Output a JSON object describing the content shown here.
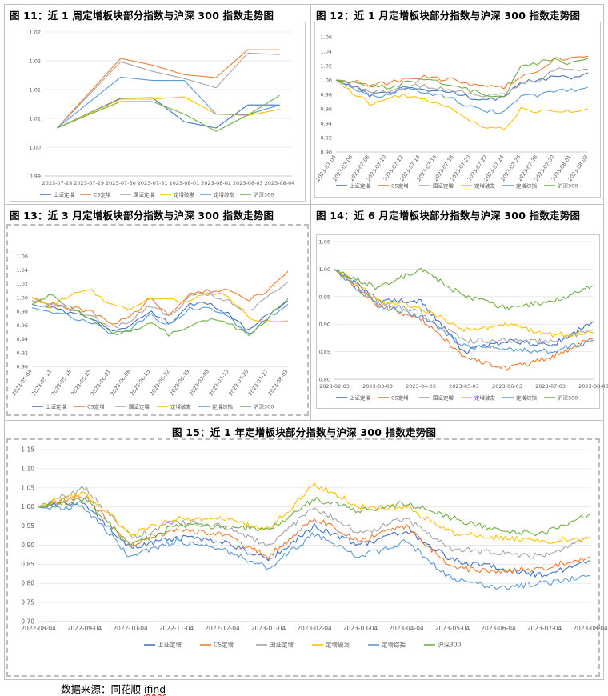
{
  "figures": {
    "f11": {
      "title": "图 11：近 1 周定增板块部分指数与沪深 300 指数走势图"
    },
    "f12": {
      "title": "图 12：近 1 月定增板块部分指数与沪深 300 指数走势图"
    },
    "f13": {
      "title": "图 13：近 3 月定增板块部分指数与沪深 300 指数走势图"
    },
    "f14": {
      "title": "图 14：近 6 月定增板块部分指数与沪深 300 指数走势图"
    },
    "f15": {
      "title": "图 15：近 1 年定增板块部分指数与沪深 300 指数走势图"
    }
  },
  "source": {
    "label": "数据来源：",
    "text": "同花顺 ",
    "underlined": "ifind"
  },
  "series_colors": {
    "上证定增": "#4472c4",
    "CS定增": "#ed7d31",
    "国证定增": "#a5a5a5",
    "定增破发": "#ffc000",
    "定增综指": "#5b9bd5",
    "沪深300": "#70ad47"
  },
  "chart_data": [
    {
      "id": "f11",
      "type": "line",
      "x": [
        "2023-07-28",
        "2023-07-29",
        "2023-07-30",
        "2023-07-31",
        "2023-08-01",
        "2023-08-02",
        "2023-08-03",
        "2023-08-04"
      ],
      "ylim": [
        0.99,
        1.02
      ],
      "yticks": [
        "0.99",
        "1.00",
        "1.01",
        "1.01",
        "1.02",
        "1.02"
      ],
      "series": [
        {
          "name": "上证定增",
          "values": [
            1.0,
            1.0031,
            1.0062,
            1.0063,
            1.0013,
            1.0,
            1.0048,
            1.0048
          ]
        },
        {
          "name": "CS定增",
          "values": [
            1.0,
            1.0073,
            1.0145,
            1.0131,
            1.0111,
            1.0105,
            1.0163,
            1.0163
          ]
        },
        {
          "name": "国证定增",
          "values": [
            1.0,
            1.0069,
            1.0138,
            1.0118,
            1.0103,
            1.0084,
            1.0156,
            1.0153
          ]
        },
        {
          "name": "定增破发",
          "values": [
            1.0,
            1.003,
            1.006,
            1.006,
            1.0065,
            1.0029,
            1.0026,
            1.0039
          ]
        },
        {
          "name": "定增综指",
          "values": [
            1.0,
            1.0053,
            1.0106,
            1.0099,
            1.0099,
            1.0029,
            1.0028,
            1.0048
          ]
        },
        {
          "name": "沪深300",
          "values": [
            1.0,
            1.0028,
            1.0055,
            1.0055,
            1.0029,
            0.9993,
            1.0027,
            1.0068
          ]
        }
      ]
    },
    {
      "id": "f12",
      "type": "line",
      "x": [
        "2023-07-04",
        "2023-07-06",
        "2023-07-08",
        "2023-07-10",
        "2023-07-12",
        "2023-07-14",
        "2023-07-16",
        "2023-07-18",
        "2023-07-20",
        "2023-07-22",
        "2023-07-24",
        "2023-07-26",
        "2023-07-28",
        "2023-07-30",
        "2023-08-01",
        "2023-08-03"
      ],
      "ylim": [
        0.9,
        1.06
      ],
      "yticks": [
        "0.90",
        "0.92",
        "0.94",
        "0.96",
        "0.98",
        "1.00",
        "1.02",
        "1.04",
        "1.06"
      ],
      "series": [
        {
          "name": "上证定增",
          "values": [
            1.0,
            0.991,
            0.978,
            0.981,
            0.987,
            0.988,
            0.985,
            0.983,
            0.975,
            0.973,
            0.974,
            0.998,
            0.998,
            1.004,
            1.002,
            1.01
          ]
        },
        {
          "name": "CS定增",
          "values": [
            1.0,
            0.998,
            0.992,
            0.996,
            1.0,
            1.005,
            1.002,
            1.0,
            0.995,
            0.992,
            0.99,
            1.005,
            1.01,
            1.028,
            1.03,
            1.033
          ]
        },
        {
          "name": "国证定增",
          "values": [
            1.0,
            0.993,
            0.982,
            0.985,
            0.99,
            0.992,
            0.988,
            0.986,
            0.979,
            0.977,
            0.978,
            0.997,
            1.0,
            1.015,
            1.012,
            1.015
          ]
        },
        {
          "name": "定增破发",
          "values": [
            1.0,
            0.982,
            0.967,
            0.972,
            0.98,
            0.975,
            0.97,
            0.96,
            0.94,
            0.935,
            0.933,
            0.96,
            0.955,
            0.958,
            0.955,
            0.96
          ]
        },
        {
          "name": "定增综指",
          "values": [
            1.0,
            0.99,
            0.978,
            0.98,
            0.988,
            0.985,
            0.98,
            0.973,
            0.962,
            0.958,
            0.956,
            0.977,
            0.978,
            0.985,
            0.985,
            0.99
          ]
        },
        {
          "name": "沪深300",
          "values": [
            1.0,
            0.997,
            0.994,
            0.99,
            0.995,
            1.0,
            0.997,
            0.992,
            0.985,
            0.98,
            0.976,
            1.018,
            1.023,
            1.03,
            1.022,
            1.03
          ]
        }
      ]
    },
    {
      "id": "f13",
      "type": "line",
      "x": [
        "2023-05-04",
        "2023-05-11",
        "2023-05-18",
        "2023-05-25",
        "2023-06-01",
        "2023-06-08",
        "2023-06-15",
        "2023-06-22",
        "2023-06-29",
        "2023-07-06",
        "2023-07-13",
        "2023-07-20",
        "2023-07-27",
        "2023-08-03"
      ],
      "ylim": [
        0.9,
        1.06
      ],
      "yticks": [
        "0.90",
        "0.92",
        "0.94",
        "0.96",
        "0.98",
        "1.00",
        "1.02",
        "1.04",
        "1.06"
      ],
      "series": [
        {
          "name": "上证定增",
          "values": [
            0.99,
            0.985,
            0.975,
            0.97,
            0.95,
            0.96,
            0.98,
            0.962,
            0.99,
            0.99,
            0.975,
            0.95,
            0.975,
            0.995
          ]
        },
        {
          "name": "CS定增",
          "values": [
            1.0,
            0.99,
            0.985,
            0.98,
            0.962,
            0.972,
            0.998,
            0.975,
            1.005,
            1.01,
            1.01,
            0.995,
            1.01,
            1.038
          ]
        },
        {
          "name": "国证定增",
          "values": [
            0.995,
            0.99,
            0.98,
            0.975,
            0.955,
            0.965,
            0.99,
            0.97,
            1.0,
            1.005,
            0.995,
            0.98,
            1.0,
            1.022
          ]
        },
        {
          "name": "定增破发",
          "values": [
            1.0,
            0.985,
            1.005,
            1.01,
            0.99,
            0.985,
            1.0,
            0.995,
            0.995,
            1.01,
            1.0,
            0.97,
            0.965,
            0.966
          ]
        },
        {
          "name": "定增综指",
          "values": [
            0.985,
            0.98,
            0.972,
            0.965,
            0.945,
            0.955,
            0.975,
            0.958,
            0.985,
            0.985,
            0.97,
            0.945,
            0.97,
            0.99
          ]
        },
        {
          "name": "沪深300",
          "values": [
            0.99,
            1.005,
            0.985,
            0.97,
            0.95,
            0.948,
            0.965,
            0.945,
            0.96,
            0.968,
            0.962,
            0.945,
            0.97,
            0.998
          ]
        }
      ]
    },
    {
      "id": "f14",
      "type": "line",
      "x": [
        "2023-02-03",
        "2023-03-03",
        "2023-04-03",
        "2023-05-03",
        "2023-06-03",
        "2023-07-03",
        "2023-08-03"
      ],
      "ylim": [
        0.8,
        1.05
      ],
      "yticks": [
        "0.80",
        "0.85",
        "0.90",
        "0.95",
        "1.00",
        "1.05"
      ],
      "series": [
        {
          "name": "上证定增",
          "values": [
            1.0,
            0.945,
            0.94,
            0.85,
            0.87,
            0.86,
            0.905
          ]
        },
        {
          "name": "CS定增",
          "values": [
            1.0,
            0.935,
            0.91,
            0.84,
            0.82,
            0.84,
            0.875
          ]
        },
        {
          "name": "国证定增",
          "values": [
            1.0,
            0.94,
            0.92,
            0.87,
            0.87,
            0.87,
            0.89
          ]
        },
        {
          "name": "定增破发",
          "values": [
            1.0,
            0.945,
            0.93,
            0.89,
            0.9,
            0.88,
            0.885
          ]
        },
        {
          "name": "定增综指",
          "values": [
            1.0,
            0.935,
            0.915,
            0.86,
            0.855,
            0.85,
            0.87
          ]
        },
        {
          "name": "沪深300",
          "values": [
            1.0,
            0.965,
            1.0,
            0.95,
            0.93,
            0.94,
            0.97
          ]
        }
      ]
    },
    {
      "id": "f15",
      "type": "line",
      "x": [
        "2022-08-04",
        "2022-09-04",
        "2022-10-04",
        "2022-11-04",
        "2022-12-04",
        "2023-01-04",
        "2023-02-04",
        "2023-03-04",
        "2023-04-04",
        "2023-05-04",
        "2023-06-04",
        "2023-07-04",
        "2023-08-04"
      ],
      "ylim": [
        0.7,
        1.15
      ],
      "yticks": [
        "0.70",
        "0.75",
        "0.80",
        "0.85",
        "0.90",
        "0.95",
        "1.00",
        "1.05",
        "1.10",
        "1.15"
      ],
      "series": [
        {
          "name": "上证定增",
          "values": [
            1.0,
            1.01,
            0.89,
            0.92,
            0.91,
            0.86,
            0.95,
            0.9,
            0.94,
            0.86,
            0.84,
            0.82,
            0.86
          ]
        },
        {
          "name": "CS定增",
          "values": [
            1.0,
            1.03,
            0.9,
            0.94,
            0.93,
            0.87,
            0.97,
            0.91,
            0.95,
            0.84,
            0.83,
            0.84,
            0.87
          ]
        },
        {
          "name": "国证定增",
          "values": [
            1.0,
            1.05,
            0.92,
            0.96,
            0.95,
            0.9,
            1.0,
            0.93,
            0.97,
            0.89,
            0.88,
            0.87,
            0.92
          ]
        },
        {
          "name": "定增破发",
          "values": [
            1.0,
            1.04,
            0.93,
            0.97,
            0.97,
            0.94,
            1.06,
            1.0,
            1.0,
            0.93,
            0.92,
            0.91,
            0.92
          ]
        },
        {
          "name": "定增综指",
          "values": [
            1.0,
            1.0,
            0.87,
            0.91,
            0.89,
            0.84,
            0.93,
            0.87,
            0.91,
            0.81,
            0.79,
            0.8,
            0.82
          ]
        },
        {
          "name": "沪深300",
          "values": [
            1.0,
            1.02,
            0.9,
            0.95,
            0.95,
            0.94,
            1.02,
            0.99,
            1.01,
            0.97,
            0.94,
            0.93,
            0.98
          ]
        }
      ]
    }
  ]
}
